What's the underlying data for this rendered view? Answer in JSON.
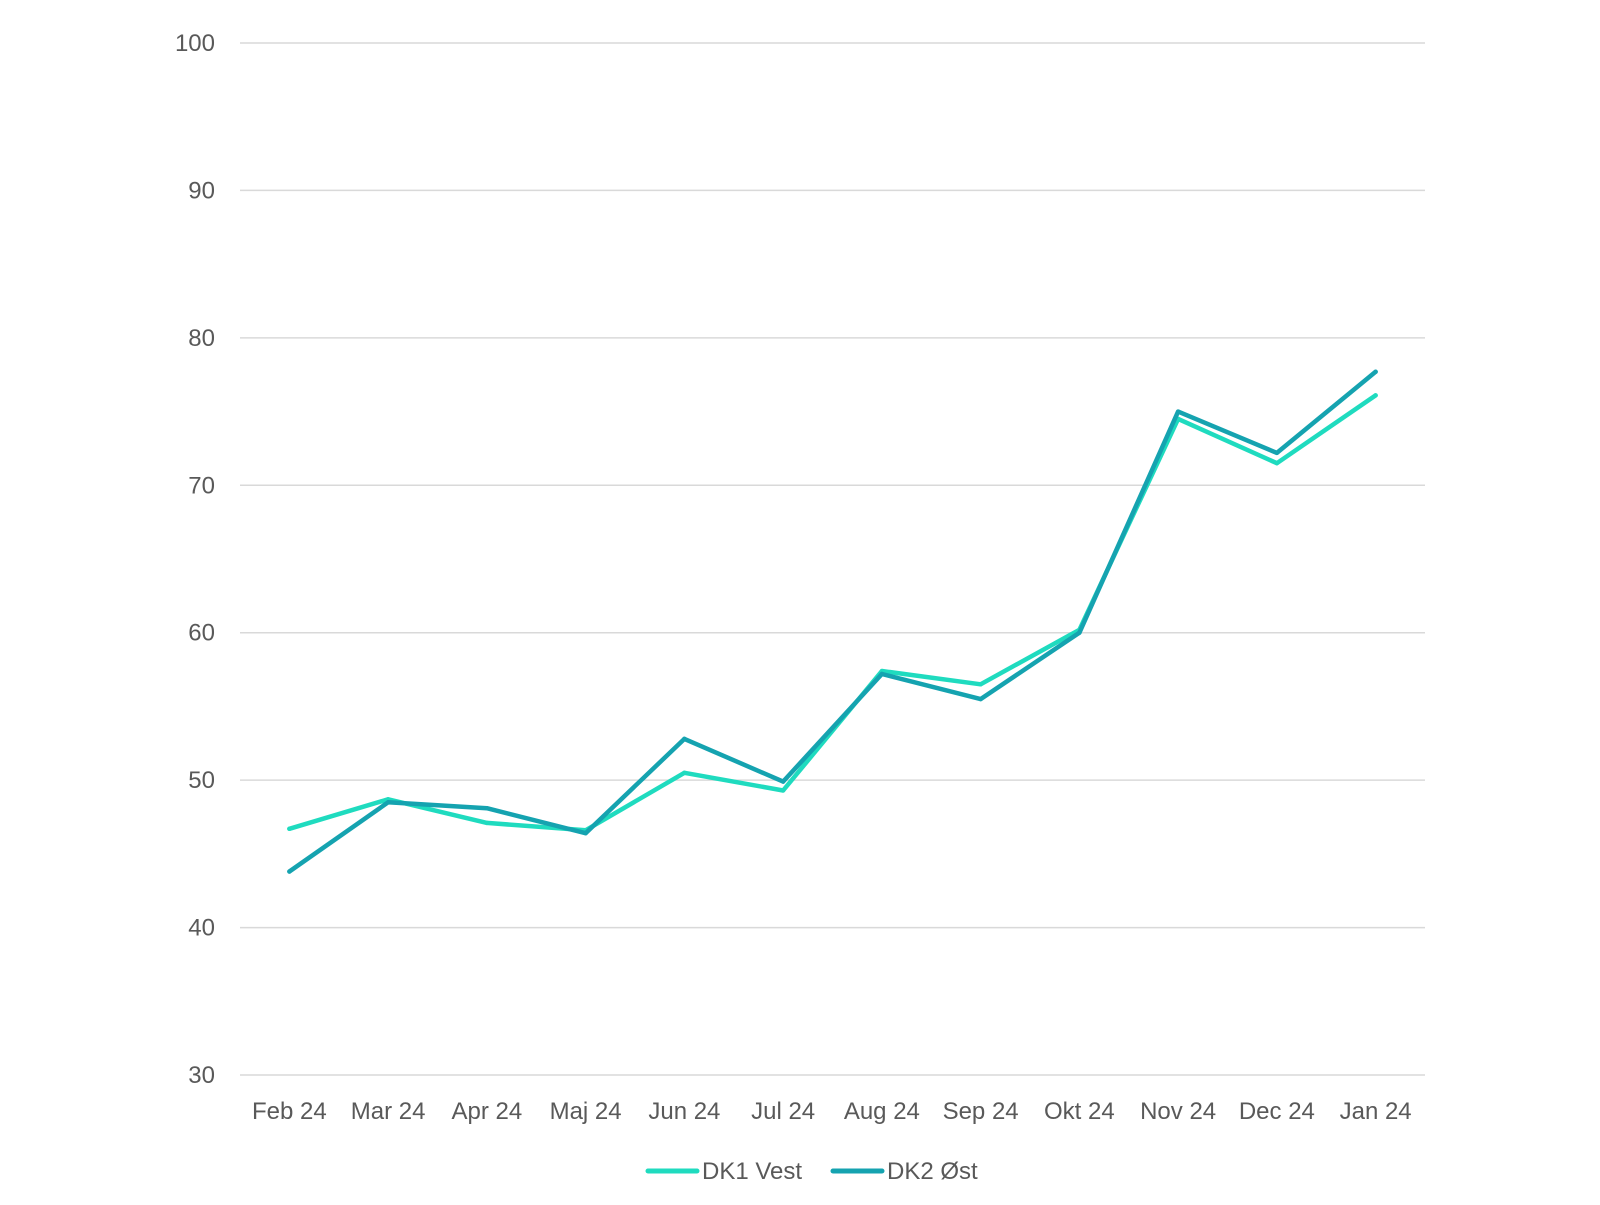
{
  "chart_data": {
    "type": "line",
    "categories": [
      "Feb 24",
      "Mar 24",
      "Apr 24",
      "Maj 24",
      "Jun 24",
      "Jul 24",
      "Aug 24",
      "Sep 24",
      "Okt 24",
      "Nov 24",
      "Dec 24",
      "Jan 24"
    ],
    "series": [
      {
        "name": "DK1 Vest",
        "color": "#1fdbbf",
        "values": [
          46.7,
          48.7,
          47.1,
          46.6,
          50.5,
          49.3,
          57.4,
          56.5,
          60.2,
          74.5,
          71.5,
          76.1
        ]
      },
      {
        "name": "DK2 Øst",
        "color": "#15a3b0",
        "values": [
          43.8,
          48.5,
          48.1,
          46.4,
          52.8,
          49.9,
          57.2,
          55.5,
          60.0,
          75.0,
          72.2,
          77.7
        ]
      }
    ],
    "yticks": [
      "30",
      "40",
      "50",
      "60",
      "70",
      "80",
      "90",
      "100"
    ],
    "ylim": [
      30,
      100
    ],
    "grid": true,
    "legend_position": "bottom-center",
    "title": "",
    "xlabel": "",
    "ylabel": ""
  }
}
